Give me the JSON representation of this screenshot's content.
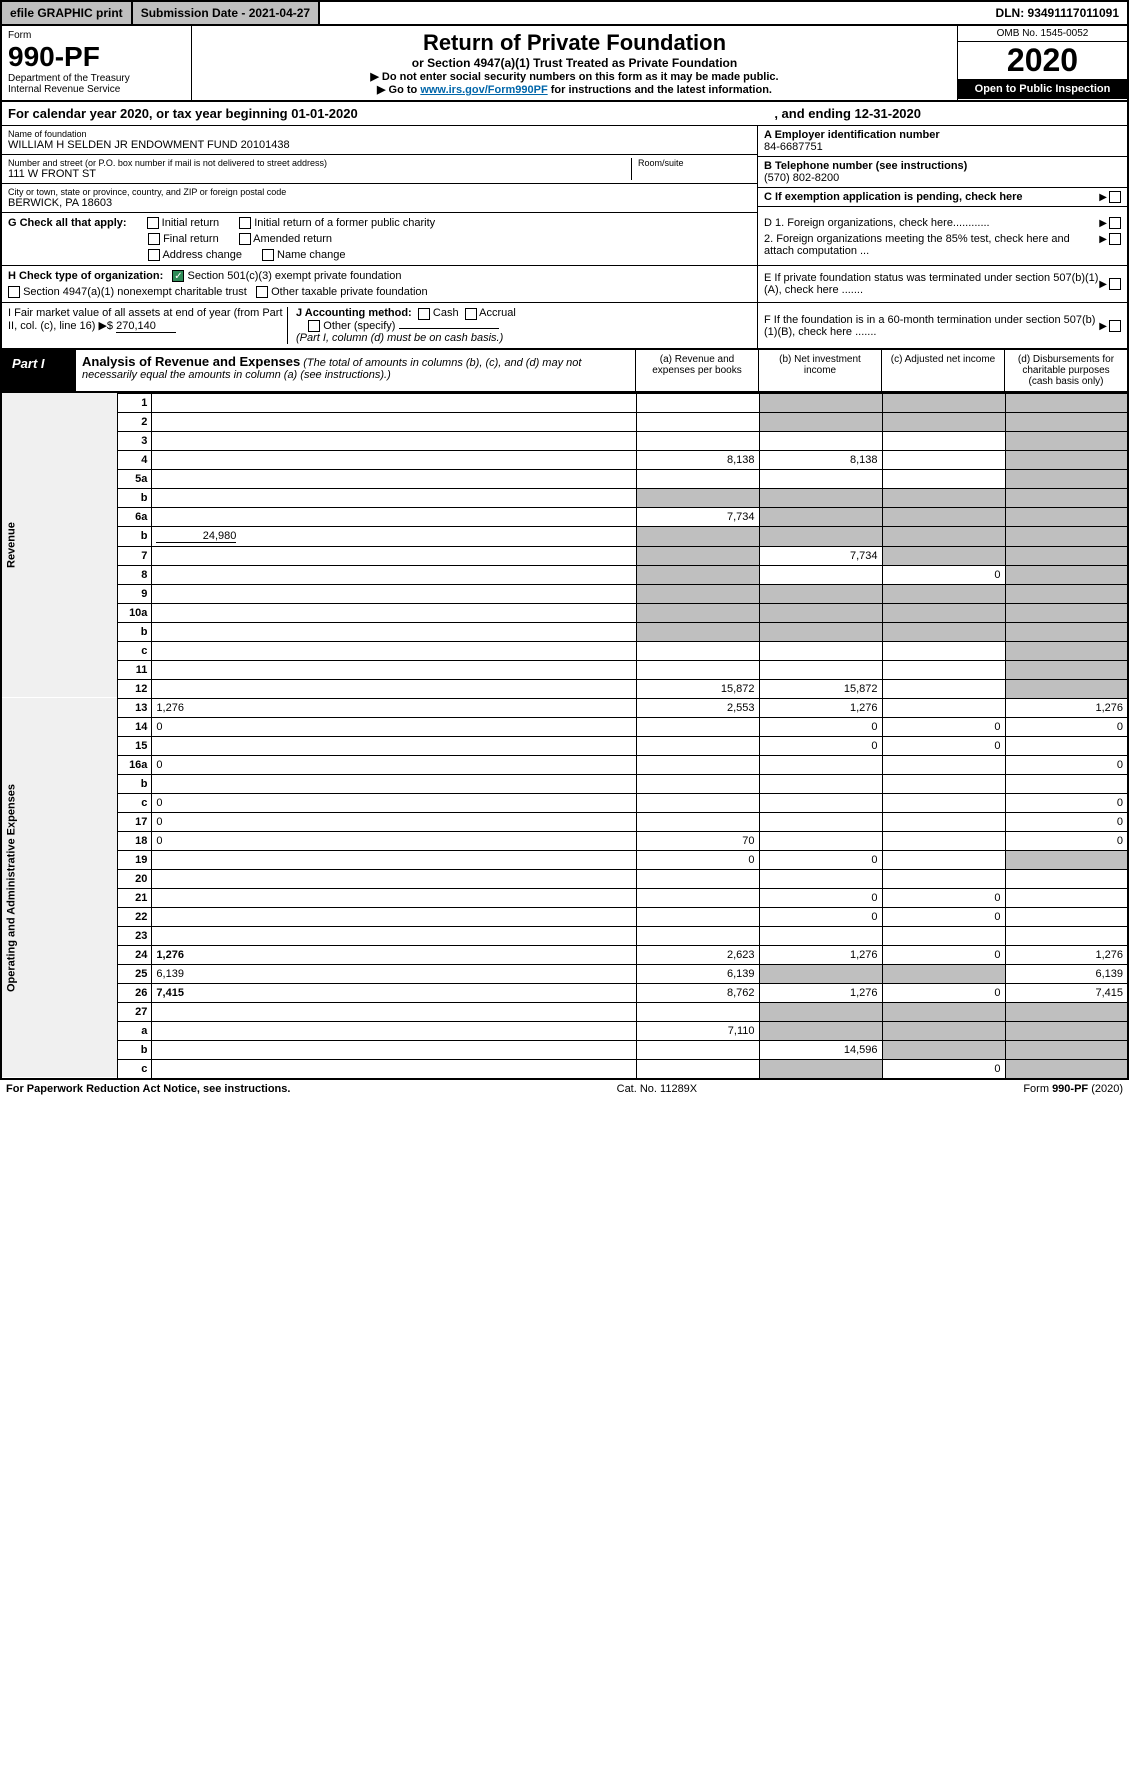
{
  "topbar": {
    "efile": "efile GRAPHIC print",
    "submission": "Submission Date - 2021-04-27",
    "dln": "DLN: 93491117011091"
  },
  "header": {
    "form_label": "Form",
    "form_number": "990-PF",
    "dept": "Department of the Treasury",
    "irs": "Internal Revenue Service",
    "title": "Return of Private Foundation",
    "subtitle": "or Section 4947(a)(1) Trust Treated as Private Foundation",
    "note1": "▶ Do not enter social security numbers on this form as it may be made public.",
    "note2_pre": "▶ Go to ",
    "note2_link": "www.irs.gov/Form990PF",
    "note2_post": " for instructions and the latest information.",
    "omb": "OMB No. 1545-0052",
    "year": "2020",
    "open": "Open to Public Inspection"
  },
  "calyear": {
    "text": "For calendar year 2020, or tax year beginning 01-01-2020",
    "ending": ", and ending 12-31-2020"
  },
  "foundation": {
    "name_lbl": "Name of foundation",
    "name": "WILLIAM H SELDEN JR ENDOWMENT FUND 20101438",
    "addr_lbl": "Number and street (or P.O. box number if mail is not delivered to street address)",
    "addr": "111 W FRONT ST",
    "room_lbl": "Room/suite",
    "city_lbl": "City or town, state or province, country, and ZIP or foreign postal code",
    "city": "BERWICK, PA  18603"
  },
  "right": {
    "a_lbl": "A Employer identification number",
    "ein": "84-6687751",
    "b_lbl": "B Telephone number (see instructions)",
    "phone": "(570) 802-8200",
    "c_lbl": "C If exemption application is pending, check here",
    "d1": "D 1. Foreign organizations, check here............",
    "d2": "2. Foreign organizations meeting the 85% test, check here and attach computation ...",
    "e_lbl": "E If private foundation status was terminated under section 507(b)(1)(A), check here .......",
    "f_lbl": "F If the foundation is in a 60-month termination under section 507(b)(1)(B), check here ......."
  },
  "g": {
    "label": "G Check all that apply:",
    "opts": [
      "Initial return",
      "Initial return of a former public charity",
      "Final return",
      "Amended return",
      "Address change",
      "Name change"
    ]
  },
  "h": {
    "label": "H Check type of organization:",
    "opt1": "Section 501(c)(3) exempt private foundation",
    "opt2": "Section 4947(a)(1) nonexempt charitable trust",
    "opt3": "Other taxable private foundation"
  },
  "i": {
    "label": "I Fair market value of all assets at end of year (from Part II, col. (c), line 16) ▶$",
    "value": "270,140"
  },
  "j": {
    "label": "J Accounting method:",
    "cash": "Cash",
    "accrual": "Accrual",
    "other": "Other (specify)",
    "note": "(Part I, column (d) must be on cash basis.)"
  },
  "part1": {
    "label": "Part I",
    "title": "Analysis of Revenue and Expenses",
    "note": "(The total of amounts in columns (b), (c), and (d) may not necessarily equal the amounts in column (a) (see instructions).)",
    "col_a": "(a)   Revenue and expenses per books",
    "col_b": "(b)  Net investment income",
    "col_c": "(c)  Adjusted net income",
    "col_d": "(d)  Disbursements for charitable purposes (cash basis only)"
  },
  "sections": {
    "revenue": "Revenue",
    "expenses": "Operating and Administrative Expenses"
  },
  "rows": {
    "r1": {
      "n": "1",
      "d": "",
      "a": "",
      "b": "",
      "c": ""
    },
    "r2": {
      "n": "2",
      "d": "",
      "a": "",
      "b": "",
      "c": ""
    },
    "r3": {
      "n": "3",
      "d": "",
      "a": "",
      "b": "",
      "c": ""
    },
    "r4": {
      "n": "4",
      "d": "",
      "a": "8,138",
      "b": "8,138",
      "c": ""
    },
    "r5a": {
      "n": "5a",
      "d": "",
      "a": "",
      "b": "",
      "c": ""
    },
    "r5b": {
      "n": "b",
      "d": "",
      "a": "",
      "b": "",
      "c": ""
    },
    "r6a": {
      "n": "6a",
      "d": "",
      "a": "7,734",
      "b": "",
      "c": ""
    },
    "r6b": {
      "n": "b",
      "d": "",
      "v": "24,980",
      "a": "",
      "b": "",
      "c": ""
    },
    "r7": {
      "n": "7",
      "d": "",
      "a": "",
      "b": "7,734",
      "c": ""
    },
    "r8": {
      "n": "8",
      "d": "",
      "a": "",
      "b": "",
      "c": "0"
    },
    "r9": {
      "n": "9",
      "d": "",
      "a": "",
      "b": "",
      "c": ""
    },
    "r10a": {
      "n": "10a",
      "d": "",
      "a": "",
      "b": "",
      "c": ""
    },
    "r10b": {
      "n": "b",
      "d": "",
      "a": "",
      "b": "",
      "c": ""
    },
    "r10c": {
      "n": "c",
      "d": "",
      "a": "",
      "b": "",
      "c": ""
    },
    "r11": {
      "n": "11",
      "d": "",
      "a": "",
      "b": "",
      "c": ""
    },
    "r12": {
      "n": "12",
      "d": "",
      "a": "15,872",
      "b": "15,872",
      "c": ""
    },
    "r13": {
      "n": "13",
      "d": "1,276",
      "a": "2,553",
      "b": "1,276",
      "c": ""
    },
    "r14": {
      "n": "14",
      "d": "0",
      "a": "",
      "b": "0",
      "c": "0"
    },
    "r15": {
      "n": "15",
      "d": "",
      "a": "",
      "b": "0",
      "c": "0"
    },
    "r16a": {
      "n": "16a",
      "d": "0",
      "a": "",
      "b": "",
      "c": ""
    },
    "r16b": {
      "n": "b",
      "d": "",
      "a": "",
      "b": "",
      "c": ""
    },
    "r16c": {
      "n": "c",
      "d": "0",
      "a": "",
      "b": "",
      "c": ""
    },
    "r17": {
      "n": "17",
      "d": "0",
      "a": "",
      "b": "",
      "c": ""
    },
    "r18": {
      "n": "18",
      "d": "0",
      "a": "70",
      "b": "",
      "c": ""
    },
    "r19": {
      "n": "19",
      "d": "",
      "a": "0",
      "b": "0",
      "c": ""
    },
    "r20": {
      "n": "20",
      "d": "",
      "a": "",
      "b": "",
      "c": ""
    },
    "r21": {
      "n": "21",
      "d": "",
      "a": "",
      "b": "0",
      "c": "0"
    },
    "r22": {
      "n": "22",
      "d": "",
      "a": "",
      "b": "0",
      "c": "0"
    },
    "r23": {
      "n": "23",
      "d": "",
      "a": "",
      "b": "",
      "c": ""
    },
    "r24": {
      "n": "24",
      "d": "1,276",
      "a": "2,623",
      "b": "1,276",
      "c": "0"
    },
    "r25": {
      "n": "25",
      "d": "6,139",
      "a": "6,139",
      "b": "",
      "c": ""
    },
    "r26": {
      "n": "26",
      "d": "7,415",
      "a": "8,762",
      "b": "1,276",
      "c": "0"
    },
    "r27": {
      "n": "27",
      "d": "",
      "a": "",
      "b": "",
      "c": ""
    },
    "r27a": {
      "n": "a",
      "d": "",
      "a": "7,110",
      "b": "",
      "c": ""
    },
    "r27b": {
      "n": "b",
      "d": "",
      "a": "",
      "b": "14,596",
      "c": ""
    },
    "r27c": {
      "n": "c",
      "d": "",
      "a": "",
      "b": "",
      "c": "0"
    }
  },
  "footer": {
    "left": "For Paperwork Reduction Act Notice, see instructions.",
    "mid": "Cat. No. 11289X",
    "right": "Form 990-PF (2020)"
  }
}
